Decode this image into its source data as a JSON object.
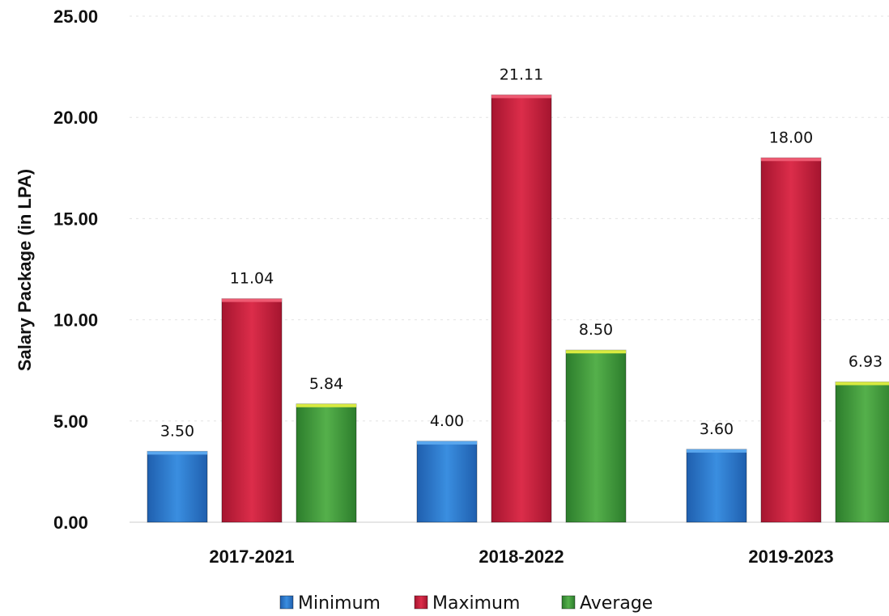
{
  "chart_data": {
    "type": "bar",
    "title": "",
    "xlabel": "",
    "ylabel": "Salary Package (in LPA)",
    "ylim": [
      0,
      25
    ],
    "yticks": [
      "0.00",
      "5.00",
      "10.00",
      "15.00",
      "20.00",
      "25.00"
    ],
    "grid": true,
    "legend_position": "bottom",
    "categories": [
      "2017-2021",
      "2018-2022",
      "2019-2023"
    ],
    "series": [
      {
        "name": "Minimum",
        "color": "#2f78c8",
        "values": [
          3.5,
          4.0,
          3.6
        ],
        "labels": [
          "3.50",
          "4.00",
          "3.60"
        ]
      },
      {
        "name": "Maximum",
        "color": "#c8203c",
        "values": [
          11.04,
          21.11,
          18.0
        ],
        "labels": [
          "11.04",
          "21.11",
          "18.00"
        ]
      },
      {
        "name": "Average",
        "color": "#3f9a3a",
        "values": [
          5.84,
          8.5,
          6.93
        ],
        "labels": [
          "5.84",
          "8.50",
          "6.93"
        ]
      }
    ]
  }
}
